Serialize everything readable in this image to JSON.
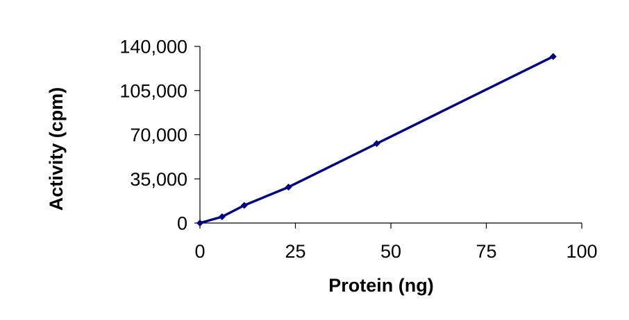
{
  "chart_data": {
    "type": "line",
    "title": "",
    "xlabel": "Protein (ng)",
    "ylabel": "Activity (cpm)",
    "xlim": [
      0,
      100
    ],
    "ylim": [
      0,
      140000
    ],
    "xticks": [
      0,
      25,
      50,
      75,
      100
    ],
    "xtick_labels": [
      "0",
      "25",
      "50",
      "75",
      "100"
    ],
    "yticks": [
      0,
      35000,
      70000,
      105000,
      140000
    ],
    "ytick_labels": [
      "0",
      "35,000",
      "70,000",
      "105,000",
      "140,000"
    ],
    "grid": false,
    "legend": "none",
    "series": [
      {
        "color": "#000080",
        "marker": "diamond",
        "x": [
          0,
          5.8,
          11.6,
          23.2,
          46.3,
          92.5
        ],
        "y": [
          0,
          5000,
          14000,
          28500,
          63000,
          132000
        ]
      }
    ]
  }
}
